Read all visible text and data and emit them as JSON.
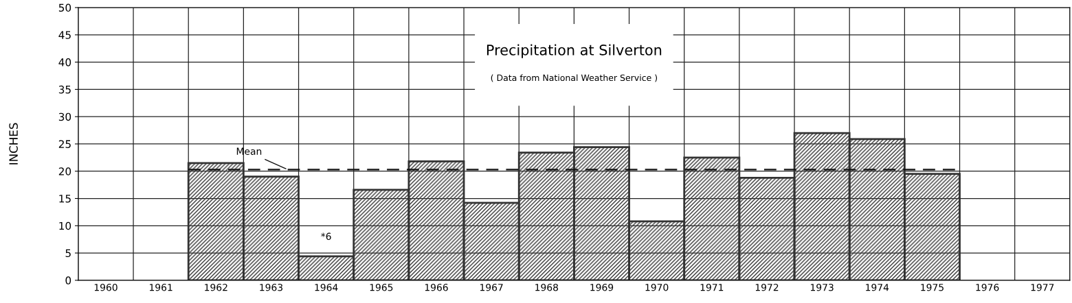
{
  "chart_data": {
    "type": "bar",
    "title": "Precipitation at Silverton",
    "subtitle": "( Data from National Weather Service )",
    "ylabel": "INCHES",
    "categories": [
      "1960",
      "1961",
      "1962",
      "1963",
      "1964",
      "1965",
      "1966",
      "1967",
      "1968",
      "1969",
      "1970",
      "1971",
      "1972",
      "1973",
      "1974",
      "1975",
      "1976",
      "1977"
    ],
    "values": [
      null,
      null,
      21.5,
      19.0,
      4.4,
      16.6,
      21.8,
      14.2,
      23.4,
      24.4,
      10.8,
      22.5,
      18.8,
      27.0,
      25.9,
      19.5,
      null,
      null
    ],
    "color": "#333333",
    "ylim": [
      0,
      50
    ],
    "yticks": [
      0,
      5,
      10,
      15,
      20,
      25,
      30,
      35,
      40,
      45,
      50
    ],
    "grid": true,
    "ref_lines": [
      {
        "axis": "y",
        "value": 20.3,
        "label": "Mean",
        "line_style": "dashed"
      }
    ],
    "annotations": [
      {
        "text": "*6",
        "x": "1964",
        "y": 4.4
      }
    ]
  }
}
